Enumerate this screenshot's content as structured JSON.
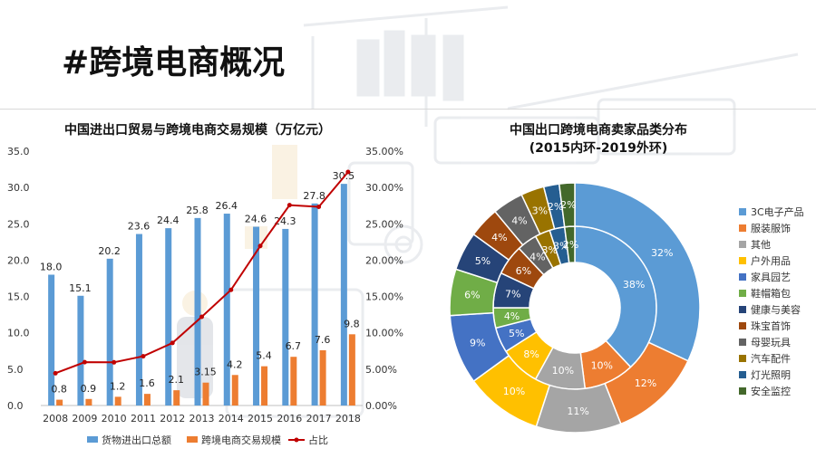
{
  "page": {
    "title": "#跨境电商概况"
  },
  "chart_data": [
    {
      "type": "bar",
      "title": "中国进出口贸易与跨境电商交易规模（万亿元）",
      "categories": [
        "2008",
        "2009",
        "2010",
        "2011",
        "2012",
        "2013",
        "2014",
        "2015",
        "2016",
        "2017",
        "2018"
      ],
      "series": [
        {
          "name": "货物进出口总额",
          "type": "bar",
          "color": "#5b9bd5",
          "values": [
            18.0,
            15.1,
            20.2,
            23.6,
            24.4,
            25.8,
            26.4,
            24.6,
            24.3,
            27.8,
            30.5
          ],
          "labels": [
            "18.0",
            "15.1",
            "20.2",
            "23.6",
            "24.4",
            "25.8",
            "26.4",
            "24.6",
            "24.3",
            "27.8",
            "30.5"
          ]
        },
        {
          "name": "跨境电商交易规模",
          "type": "bar",
          "color": "#ed7d31",
          "values": [
            0.8,
            0.9,
            1.2,
            1.6,
            2.1,
            3.15,
            4.2,
            5.4,
            6.7,
            7.6,
            9.8
          ],
          "labels": [
            "0.8",
            "0.9",
            "1.2",
            "1.6",
            "2.1",
            "3.15",
            "4.2",
            "5.4",
            "6.7",
            "7.6",
            "9.8"
          ]
        },
        {
          "name": "占比",
          "type": "line",
          "axis": "right",
          "color": "#c00000",
          "values": [
            0.0444,
            0.0596,
            0.0594,
            0.0678,
            0.0861,
            0.1221,
            0.1591,
            0.2195,
            0.2757,
            0.2734,
            0.3213
          ]
        }
      ],
      "y_left": {
        "ylim": [
          0,
          35
        ],
        "ticks": [
          "0.0",
          "5.0",
          "10.0",
          "15.0",
          "20.0",
          "25.0",
          "30.0",
          "35.0"
        ]
      },
      "y_right": {
        "ylim": [
          0,
          0.35
        ],
        "ticks": [
          "0.00%",
          "5.00%",
          "10.00%",
          "15.00%",
          "20.00%",
          "25.00%",
          "30.00%",
          "35.00%"
        ]
      },
      "legend": {
        "position": "bottom"
      },
      "grid": false
    },
    {
      "type": "pie",
      "variant": "double-donut",
      "title": "中国出口跨境电商卖家品类分布",
      "subtitle": "(2015内环-2019外环)",
      "categories": [
        "3C电子产品",
        "服装服饰",
        "其他",
        "户外用品",
        "家具园艺",
        "鞋帽箱包",
        "健康与美容",
        "珠宝首饰",
        "母婴玩具",
        "汽车配件",
        "灯光照明",
        "安全监控"
      ],
      "colors": [
        "#5b9bd5",
        "#ed7d31",
        "#a5a5a5",
        "#ffc000",
        "#4472c4",
        "#70ad47",
        "#264478",
        "#9e480e",
        "#636363",
        "#997300",
        "#255e91",
        "#43682b"
      ],
      "series": [
        {
          "name": "2015",
          "ring": "inner",
          "values": [
            38,
            10,
            10,
            8,
            5,
            4,
            7,
            6,
            4,
            3,
            3,
            2
          ]
        },
        {
          "name": "2019",
          "ring": "outer",
          "values": [
            32,
            12,
            11,
            10,
            9,
            6,
            5,
            4,
            4,
            3,
            2,
            2
          ]
        }
      ],
      "legend": {
        "position": "right"
      }
    }
  ]
}
